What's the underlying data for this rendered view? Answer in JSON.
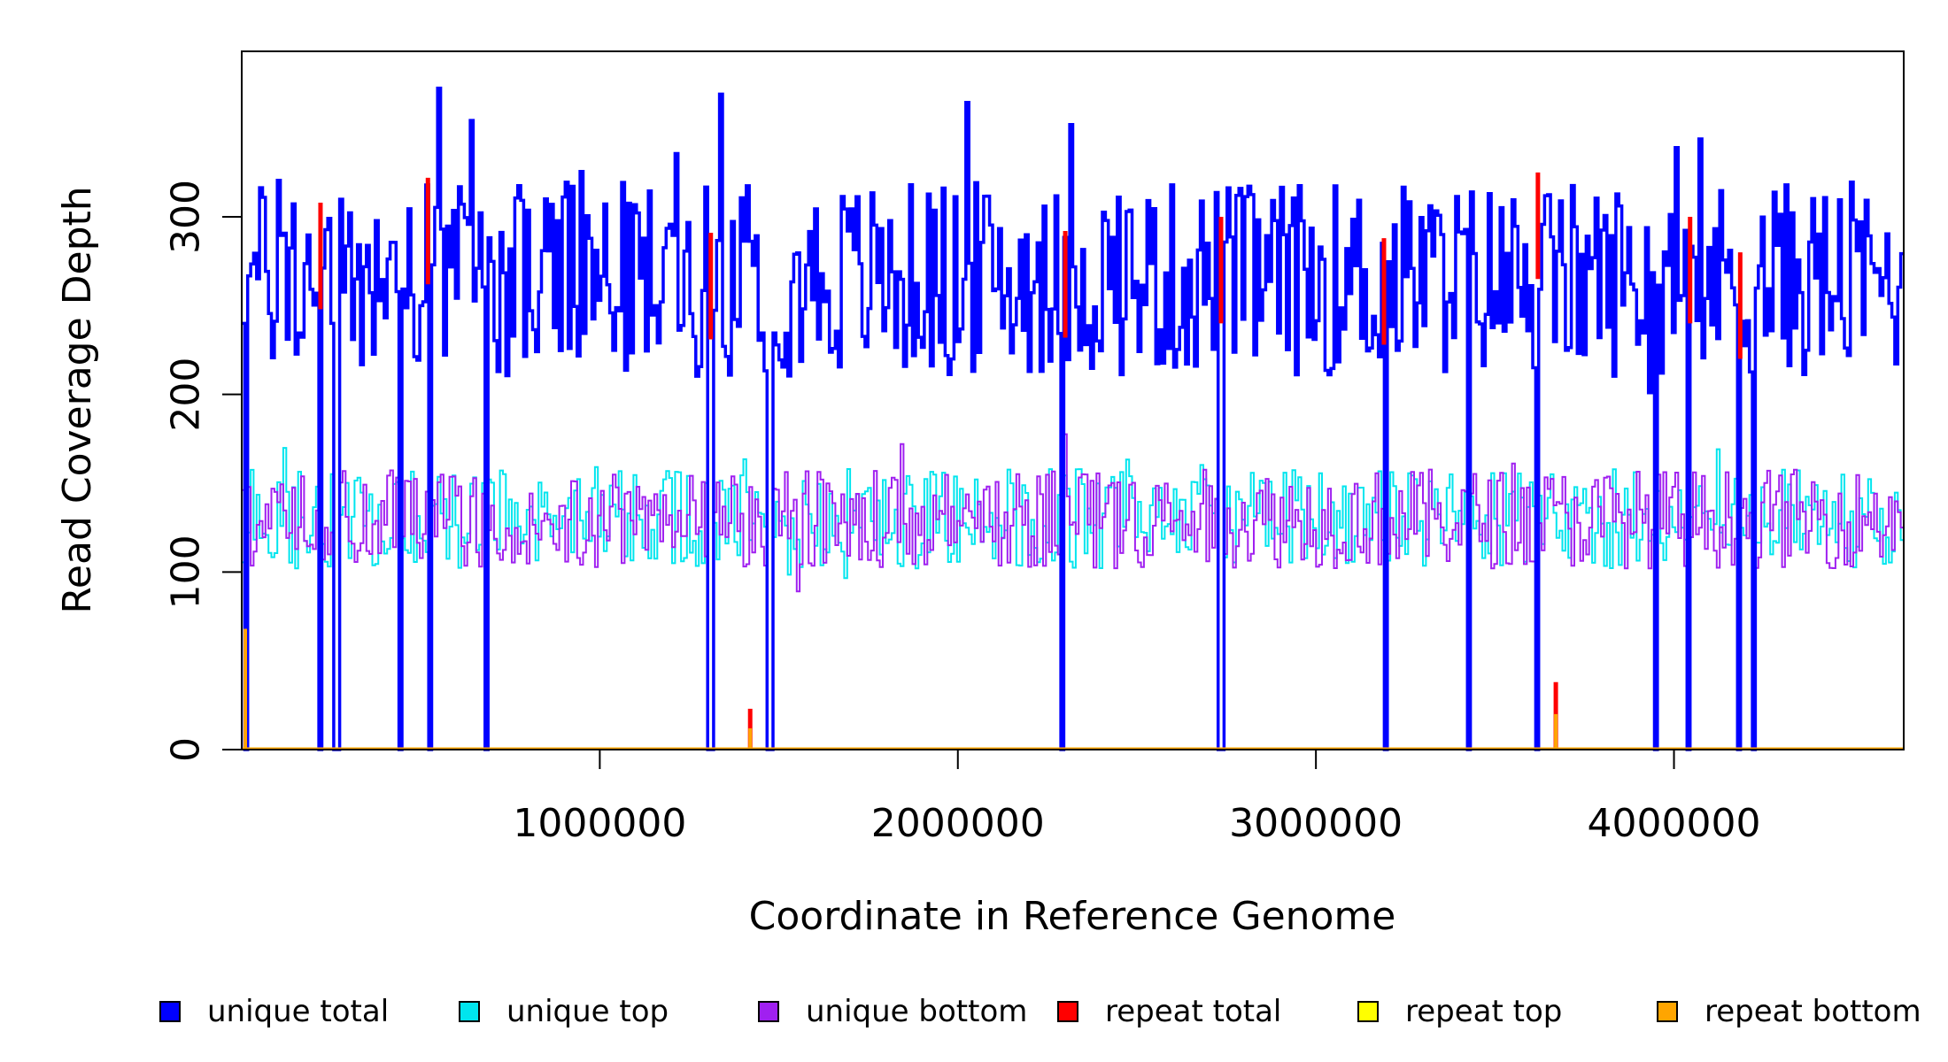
{
  "chart_data": {
    "type": "line",
    "title": "",
    "xlabel": "Coordinate in Reference Genome",
    "ylabel": "Read Coverage Depth",
    "xlim": [
      0,
      4641652
    ],
    "ylim": [
      0,
      390
    ],
    "x_ticks": [
      "1000000",
      "2000000",
      "3000000",
      "4000000"
    ],
    "y_ticks": [
      "0",
      "100",
      "200",
      "300"
    ],
    "grid": false,
    "legend_position": "bottom",
    "series": [
      {
        "name": "unique total",
        "color": "#0000ff",
        "mean": 265,
        "jitter": 55
      },
      {
        "name": "unique top",
        "color": "#00e5ee",
        "mean": 130,
        "jitter": 28
      },
      {
        "name": "unique bottom",
        "color": "#a020f0",
        "mean": 130,
        "jitter": 28
      },
      {
        "name": "repeat total",
        "color": "#ff0000",
        "mean": 0,
        "jitter": 0
      },
      {
        "name": "repeat top",
        "color": "#ffff00",
        "mean": 0,
        "jitter": 0
      },
      {
        "name": "repeat bottom",
        "color": "#ffa500",
        "mean": 0,
        "jitter": 0
      }
    ],
    "dropout_positions": [
      10000,
      220000,
      265000,
      445000,
      525000,
      685000,
      1310000,
      1475000,
      2290000,
      2735000,
      3195000,
      3425000,
      3620000,
      3950000,
      4040000,
      4180000,
      4225000
    ],
    "repeat_spikes": [
      {
        "x": 220000,
        "value": 308
      },
      {
        "x": 520000,
        "value": 322
      },
      {
        "x": 1310000,
        "value": 291
      },
      {
        "x": 1420000,
        "value": 23
      },
      {
        "x": 2300000,
        "value": 292
      },
      {
        "x": 2735000,
        "value": 300
      },
      {
        "x": 3190000,
        "value": 288
      },
      {
        "x": 3620000,
        "value": 325
      },
      {
        "x": 3670000,
        "value": 38
      },
      {
        "x": 4045000,
        "value": 300
      },
      {
        "x": 4185000,
        "value": 280
      }
    ],
    "repeat_bottom_spikes": [
      {
        "x": 10000,
        "value": 68
      },
      {
        "x": 1420000,
        "value": 12
      },
      {
        "x": 3670000,
        "value": 20
      }
    ]
  }
}
